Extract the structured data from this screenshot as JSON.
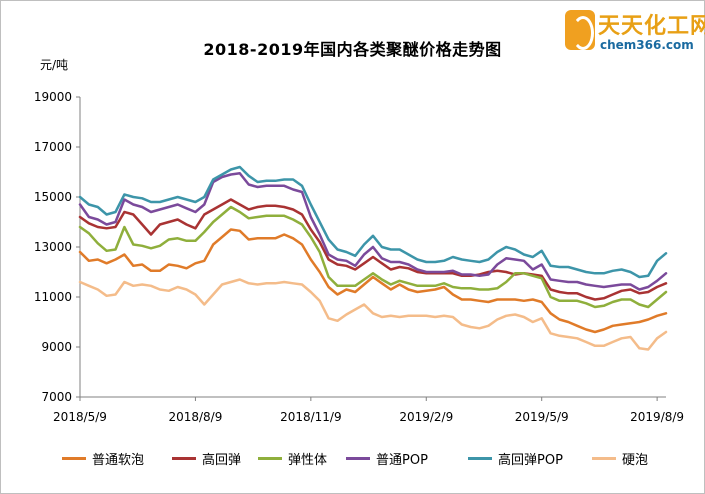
{
  "logo": {
    "name": "天天化工网",
    "site": "chem366.com"
  },
  "chart_data": {
    "type": "line",
    "title": "2018-2019年国内各类聚醚价格走势图",
    "ylabel": "元/吨",
    "xlabel": "",
    "ylim": [
      7000,
      19000
    ],
    "yticks": [
      7000,
      9000,
      11000,
      13000,
      15000,
      17000,
      19000
    ],
    "x_tick_labels": [
      "2018/5/9",
      "2018/8/9",
      "2018/11/9",
      "2019/2/9",
      "2019/5/9",
      "2019/8/9"
    ],
    "x_tick_index": [
      0,
      13,
      26,
      39,
      52,
      65
    ],
    "legend_position": "bottom",
    "series": [
      {
        "name": "普通软泡",
        "color": "#e07b29",
        "values": [
          12800,
          12450,
          12500,
          12350,
          12500,
          12700,
          12250,
          12300,
          12050,
          12050,
          12300,
          12250,
          12150,
          12350,
          12450,
          13100,
          13400,
          13700,
          13650,
          13300,
          13350,
          13350,
          13350,
          13500,
          13350,
          13100,
          12500,
          12000,
          11400,
          11100,
          11300,
          11200,
          11500,
          11800,
          11550,
          11300,
          11500,
          11300,
          11200,
          11250,
          11300,
          11400,
          11100,
          10900,
          10900,
          10850,
          10800,
          10900,
          10900,
          10900,
          10850,
          10900,
          10800,
          10350,
          10100,
          10000,
          9850,
          9700,
          9600,
          9700,
          9850,
          9900,
          9950,
          10000,
          10100,
          10250,
          10350
        ]
      },
      {
        "name": "高回弹",
        "color": "#a93333",
        "values": [
          14200,
          13950,
          13800,
          13750,
          13800,
          14400,
          14300,
          13900,
          13500,
          13900,
          14000,
          14100,
          13900,
          13750,
          14300,
          14500,
          14700,
          14900,
          14700,
          14500,
          14600,
          14650,
          14650,
          14600,
          14500,
          14300,
          13700,
          13200,
          12500,
          12300,
          12250,
          12100,
          12350,
          12600,
          12350,
          12100,
          12200,
          12150,
          12000,
          11950,
          11950,
          11950,
          11950,
          11850,
          11850,
          11900,
          12000,
          12050,
          12000,
          11900,
          11950,
          11900,
          11850,
          11300,
          11200,
          11150,
          11150,
          11000,
          10900,
          10950,
          11100,
          11250,
          11300,
          11150,
          11200,
          11400,
          11550
        ]
      },
      {
        "name": "弹性体",
        "color": "#8faf3c",
        "values": [
          13800,
          13550,
          13150,
          12850,
          12900,
          13800,
          13100,
          13050,
          12950,
          13050,
          13300,
          13350,
          13250,
          13250,
          13600,
          14000,
          14300,
          14600,
          14400,
          14150,
          14200,
          14250,
          14250,
          14250,
          14100,
          13900,
          13400,
          12800,
          11800,
          11450,
          11450,
          11450,
          11700,
          11950,
          11700,
          11500,
          11650,
          11550,
          11450,
          11450,
          11450,
          11550,
          11400,
          11350,
          11350,
          11300,
          11300,
          11350,
          11600,
          11950,
          11950,
          11850,
          11750,
          11000,
          10850,
          10850,
          10850,
          10750,
          10600,
          10650,
          10800,
          10900,
          10900,
          10700,
          10600,
          10900,
          11200
        ]
      },
      {
        "name": "普通POP",
        "color": "#7b4a9b",
        "values": [
          14700,
          14200,
          14100,
          13900,
          14000,
          14900,
          14700,
          14600,
          14400,
          14500,
          14600,
          14700,
          14550,
          14400,
          14700,
          15600,
          15800,
          15900,
          15950,
          15500,
          15400,
          15450,
          15450,
          15450,
          15300,
          15200,
          14200,
          13500,
          12700,
          12500,
          12450,
          12250,
          12700,
          13000,
          12550,
          12400,
          12400,
          12300,
          12100,
          12000,
          12000,
          12000,
          12050,
          11900,
          11900,
          11850,
          11900,
          12300,
          12550,
          12500,
          12450,
          12100,
          12300,
          11700,
          11650,
          11600,
          11600,
          11500,
          11450,
          11400,
          11450,
          11500,
          11500,
          11300,
          11400,
          11650,
          11950
        ]
      },
      {
        "name": "高回弹POP",
        "color": "#3d95a9",
        "values": [
          15000,
          14700,
          14600,
          14300,
          14400,
          15100,
          15000,
          14950,
          14800,
          14800,
          14900,
          15000,
          14900,
          14800,
          15000,
          15700,
          15900,
          16100,
          16200,
          15850,
          15600,
          15650,
          15650,
          15700,
          15700,
          15450,
          14700,
          14000,
          13300,
          12900,
          12800,
          12650,
          13100,
          13450,
          13000,
          12900,
          12900,
          12700,
          12500,
          12400,
          12400,
          12450,
          12600,
          12500,
          12450,
          12400,
          12500,
          12800,
          13000,
          12900,
          12700,
          12600,
          12850,
          12250,
          12200,
          12200,
          12100,
          12000,
          11950,
          11950,
          12050,
          12100,
          12000,
          11800,
          11850,
          12450,
          12750
        ]
      },
      {
        "name": "硬泡",
        "color": "#f4bc8a",
        "values": [
          11600,
          11450,
          11300,
          11050,
          11100,
          11600,
          11450,
          11500,
          11450,
          11300,
          11250,
          11400,
          11300,
          11100,
          10700,
          11100,
          11500,
          11600,
          11700,
          11550,
          11500,
          11550,
          11550,
          11600,
          11550,
          11500,
          11200,
          10850,
          10150,
          10050,
          10300,
          10500,
          10700,
          10350,
          10200,
          10250,
          10200,
          10250,
          10250,
          10250,
          10200,
          10250,
          10200,
          9900,
          9800,
          9750,
          9850,
          10100,
          10250,
          10300,
          10200,
          10000,
          10150,
          9550,
          9450,
          9400,
          9350,
          9200,
          9050,
          9050,
          9200,
          9350,
          9400,
          8950,
          8900,
          9350,
          9600
        ]
      }
    ]
  }
}
